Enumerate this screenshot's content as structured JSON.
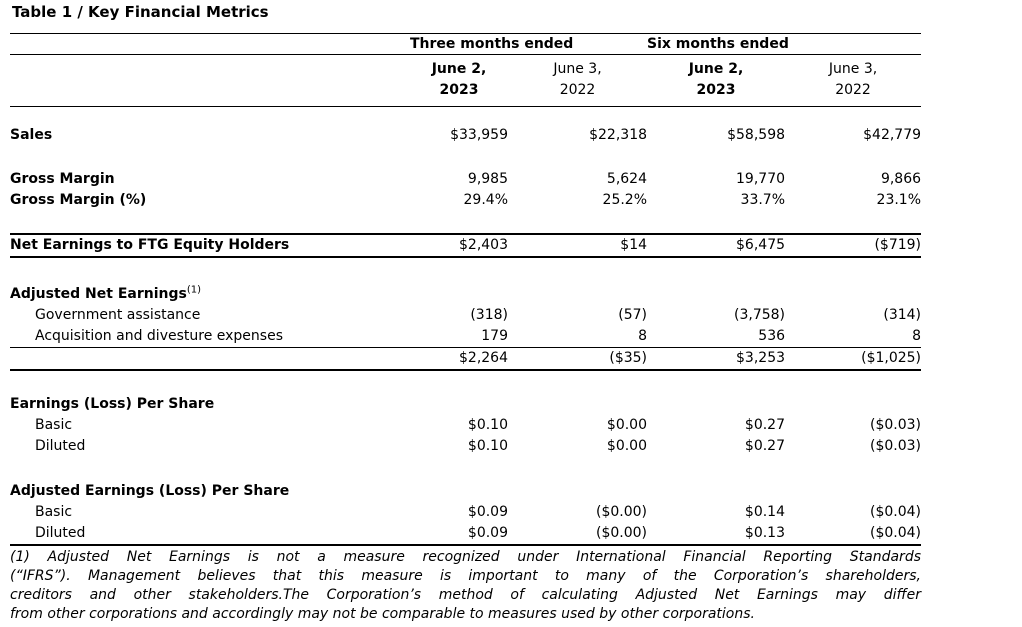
{
  "page": {
    "background": "#ffffff",
    "text_color": "#000000"
  },
  "title": "Table 1 / Key Financial Metrics",
  "table": {
    "group_headers": [
      "Three months ended",
      "Six months ended"
    ],
    "col_headers": [
      {
        "line1": "June 2,",
        "line2": "2023",
        "bold": true
      },
      {
        "line1": "June 3,",
        "line2": "2022",
        "bold": false
      },
      {
        "line1": "June 2,",
        "line2": "2023",
        "bold": true
      },
      {
        "line1": "June 3,",
        "line2": "2022",
        "bold": false
      }
    ],
    "rows": [
      {
        "spacer": 18
      },
      {
        "label": "Sales",
        "bold": true,
        "values": [
          "$33,959",
          "$22,318",
          "$58,598",
          "$42,779"
        ]
      },
      {
        "spacer": 23
      },
      {
        "label": "Gross Margin",
        "bold": true,
        "values": [
          "9,985",
          "5,624",
          "19,770",
          "9,866"
        ]
      },
      {
        "label": "Gross Margin (%)",
        "bold": true,
        "values": [
          "29.4%",
          "25.2%",
          "33.7%",
          "23.1%"
        ]
      },
      {
        "spacer": 22
      },
      {
        "label": "Net Earnings to FTG Equity Holders",
        "bold": true,
        "cls": "total",
        "values": [
          "$2,403",
          "$14",
          "$6,475",
          "($719)"
        ]
      },
      {
        "spacer": 26
      },
      {
        "label": "Adjusted Net Earnings",
        "sup": "(1)",
        "bold": true,
        "values": [
          "",
          "",
          "",
          ""
        ]
      },
      {
        "label": "Government assistance",
        "indent": true,
        "values": [
          "(318)",
          "(57)",
          "(3,758)",
          "(314)"
        ]
      },
      {
        "label": "Acquisition and divesture expenses",
        "indent": true,
        "cls": "ruleb1",
        "values": [
          "179",
          "8",
          "536",
          "8"
        ]
      },
      {
        "label": "",
        "cls": "subtotal",
        "values": [
          "$2,264",
          "($35)",
          "$3,253",
          "($1,025)"
        ]
      },
      {
        "spacer": 23
      },
      {
        "label": "Earnings (Loss) Per Share",
        "bold": true,
        "values": [
          "",
          "",
          "",
          ""
        ]
      },
      {
        "label": "Basic",
        "indent": true,
        "values": [
          "$0.10",
          "$0.00",
          "$0.27",
          "($0.03)"
        ]
      },
      {
        "label": "Diluted",
        "indent": true,
        "values": [
          "$0.10",
          "$0.00",
          "$0.27",
          "($0.03)"
        ]
      },
      {
        "spacer": 24
      },
      {
        "label": "Adjusted Earnings (Loss) Per Share",
        "bold": true,
        "values": [
          "",
          "",
          "",
          ""
        ]
      },
      {
        "label": "Basic",
        "indent": true,
        "values": [
          "$0.09",
          "($0.00)",
          "$0.14",
          "($0.04)"
        ]
      },
      {
        "label": "Diluted",
        "indent": true,
        "cls": "last",
        "values": [
          "$0.09",
          "($0.00)",
          "$0.13",
          "($0.04)"
        ]
      }
    ]
  },
  "footnote": {
    "lines": [
      "(1) Adjusted Net Earnings is not a measure recognized under International Financial Reporting Standards",
      "(“IFRS”). Management believes that this measure is important to many of the Corporation’s shareholders,",
      "creditors and other stakeholders.The Corporation’s method of calculating Adjusted Net Earnings may differ",
      "from other corporations and accordingly may not be comparable to measures used by other corporations."
    ]
  }
}
